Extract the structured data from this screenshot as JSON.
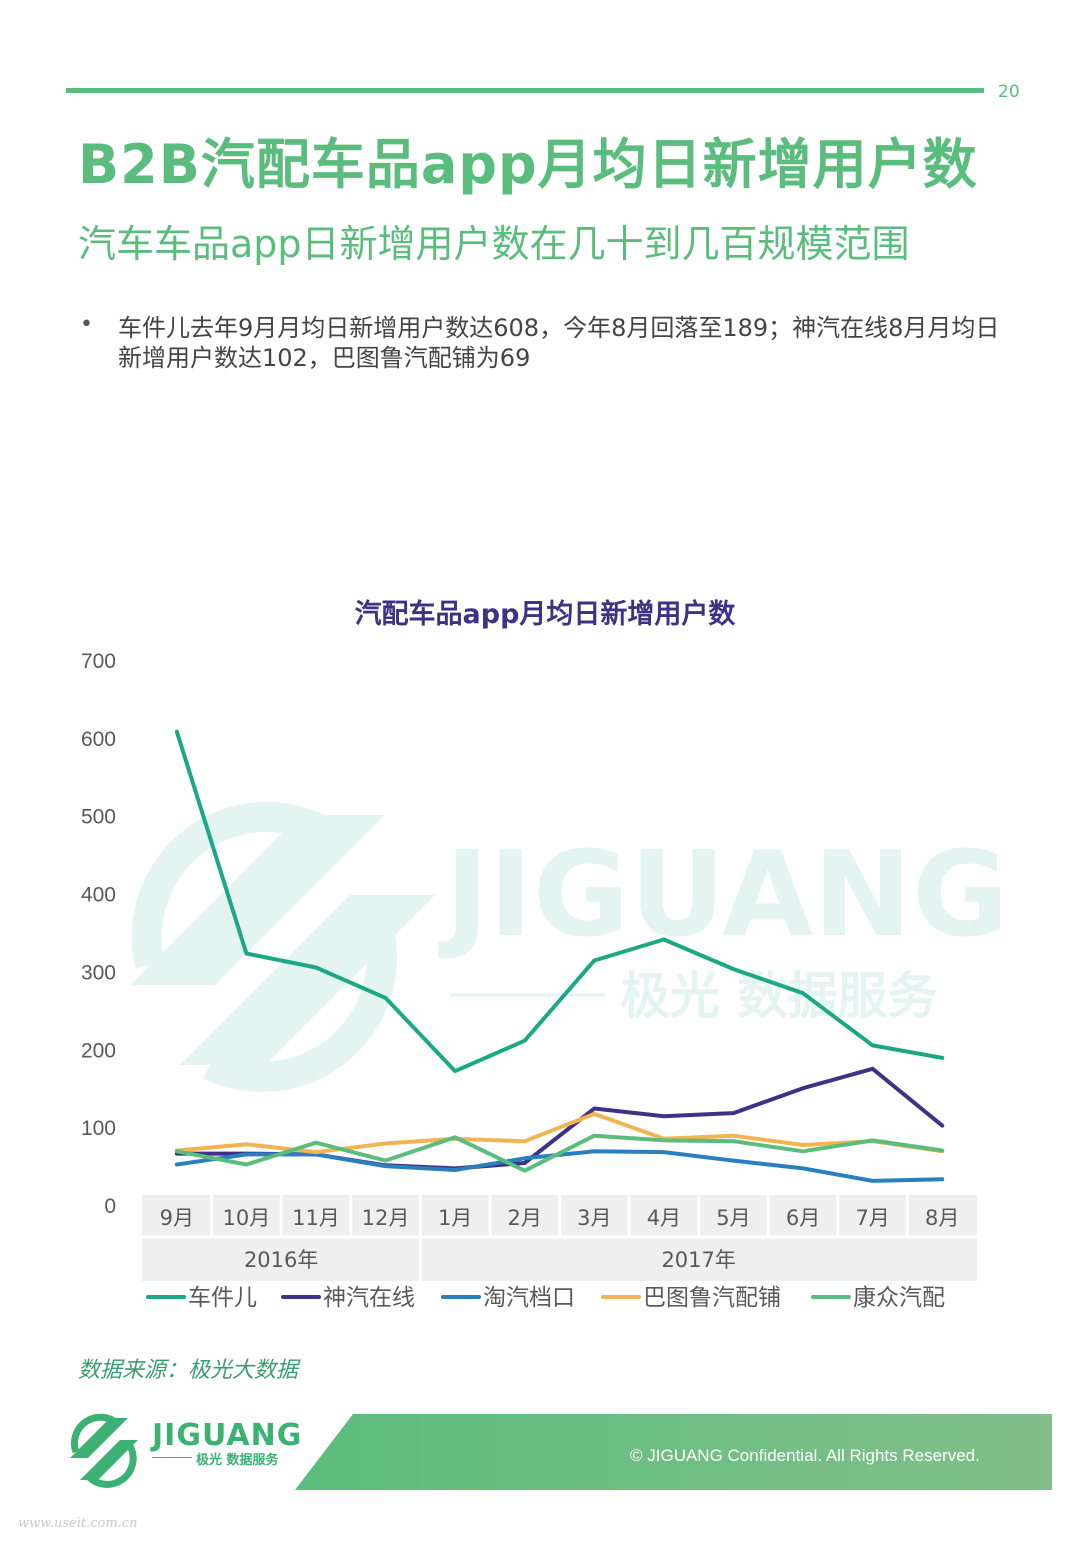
{
  "page": {
    "number": "20",
    "title": "B2B汽配车品app月均日新增用户数",
    "subtitle": "汽车车品app日新增用户数在几十到几百规模范围",
    "bullet": "车件儿去年9月月均日新增用户数达608，今年8月回落至189；神汽在线8月月均日新增用户数达102，巴图鲁汽配铺为69",
    "source": "数据来源：极光大数据",
    "copyright": "© JIGUANG Confidential. All Rights Reserved.",
    "watermark_text": "JIGUANG",
    "watermark_sub": "极光 数据服务",
    "logo_text": "JIGUANG",
    "logo_sub": "极光 数据服务",
    "site_watermark": "www.useit.com.cn"
  },
  "chart_data": {
    "type": "line",
    "title": "汽配车品app月均日新增用户数",
    "categories": [
      "9月",
      "10月",
      "11月",
      "12月",
      "1月",
      "2月",
      "3月",
      "4月",
      "5月",
      "6月",
      "7月",
      "8月"
    ],
    "year_groups": [
      {
        "label": "2016年",
        "span": 4
      },
      {
        "label": "2017年",
        "span": 8
      }
    ],
    "ylim": [
      0,
      700
    ],
    "yticks": [
      0,
      100,
      200,
      300,
      400,
      500,
      600,
      700
    ],
    "grid": false,
    "legend_position": "bottom",
    "series": [
      {
        "name": "车件儿",
        "color": "#1aa886",
        "values": [
          608,
          323,
          305,
          266,
          172,
          211,
          314,
          341,
          303,
          272,
          205,
          189
        ]
      },
      {
        "name": "神汽在线",
        "color": "#3f3185",
        "values": [
          66,
          66,
          65,
          51,
          47,
          54,
          124,
          114,
          118,
          150,
          175,
          102
        ]
      },
      {
        "name": "淘汽档口",
        "color": "#2a7fc0",
        "values": [
          52,
          65,
          65,
          50,
          45,
          60,
          69,
          68,
          57,
          47,
          31,
          33
        ]
      },
      {
        "name": "巴图鲁汽配铺",
        "color": "#f1b451",
        "values": [
          70,
          78,
          68,
          79,
          85,
          82,
          117,
          85,
          89,
          77,
          82,
          69
        ]
      },
      {
        "name": "康众汽配",
        "color": "#5bbd7d",
        "values": [
          69,
          52,
          80,
          57,
          87,
          44,
          89,
          83,
          82,
          69,
          83,
          70
        ]
      }
    ]
  }
}
